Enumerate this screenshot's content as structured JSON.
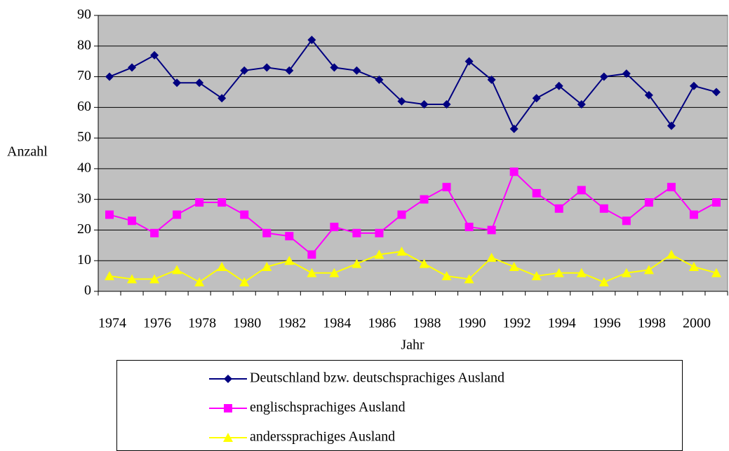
{
  "chart_data": {
    "type": "line",
    "y_label": "Anzahl",
    "x_label": "Jahr",
    "categories": [
      "1974",
      null,
      "1976",
      null,
      "1978",
      null,
      "1980",
      null,
      "1982",
      null,
      "1984",
      null,
      "1986",
      null,
      "1988",
      null,
      "1990",
      null,
      "1992",
      null,
      "1994",
      null,
      "1996",
      null,
      "1998",
      null,
      "2000",
      null
    ],
    "series": [
      {
        "name": "Deutschland bzw. deutschsprachiges Ausland",
        "color": "#000080",
        "marker": "diamond",
        "values": [
          70,
          73,
          77,
          68,
          68,
          63,
          72,
          73,
          72,
          82,
          73,
          72,
          69,
          62,
          61,
          61,
          75,
          69,
          53,
          63,
          67,
          61,
          70,
          71,
          64,
          54,
          67,
          65
        ]
      },
      {
        "name": "englischsprachiges Ausland",
        "color": "#FF00FF",
        "marker": "square",
        "values": [
          25,
          23,
          19,
          25,
          29,
          29,
          25,
          19,
          18,
          12,
          21,
          19,
          19,
          25,
          30,
          34,
          21,
          20,
          39,
          32,
          27,
          33,
          27,
          23,
          29,
          34,
          25,
          29
        ]
      },
      {
        "name": "anderssprachiges Ausland",
        "color": "#FFFF00",
        "marker": "triangle",
        "values": [
          5,
          4,
          4,
          7,
          3,
          8,
          3,
          8,
          10,
          6,
          6,
          9,
          12,
          13,
          9,
          5,
          4,
          11,
          8,
          5,
          6,
          6,
          3,
          6,
          7,
          12,
          8,
          6
        ]
      }
    ],
    "ylim": [
      0,
      90
    ],
    "yticks": [
      0,
      10,
      20,
      30,
      40,
      50,
      60,
      70,
      80,
      90
    ],
    "grid": true,
    "plot_background": "#C0C0C0",
    "legend": "bottom"
  }
}
